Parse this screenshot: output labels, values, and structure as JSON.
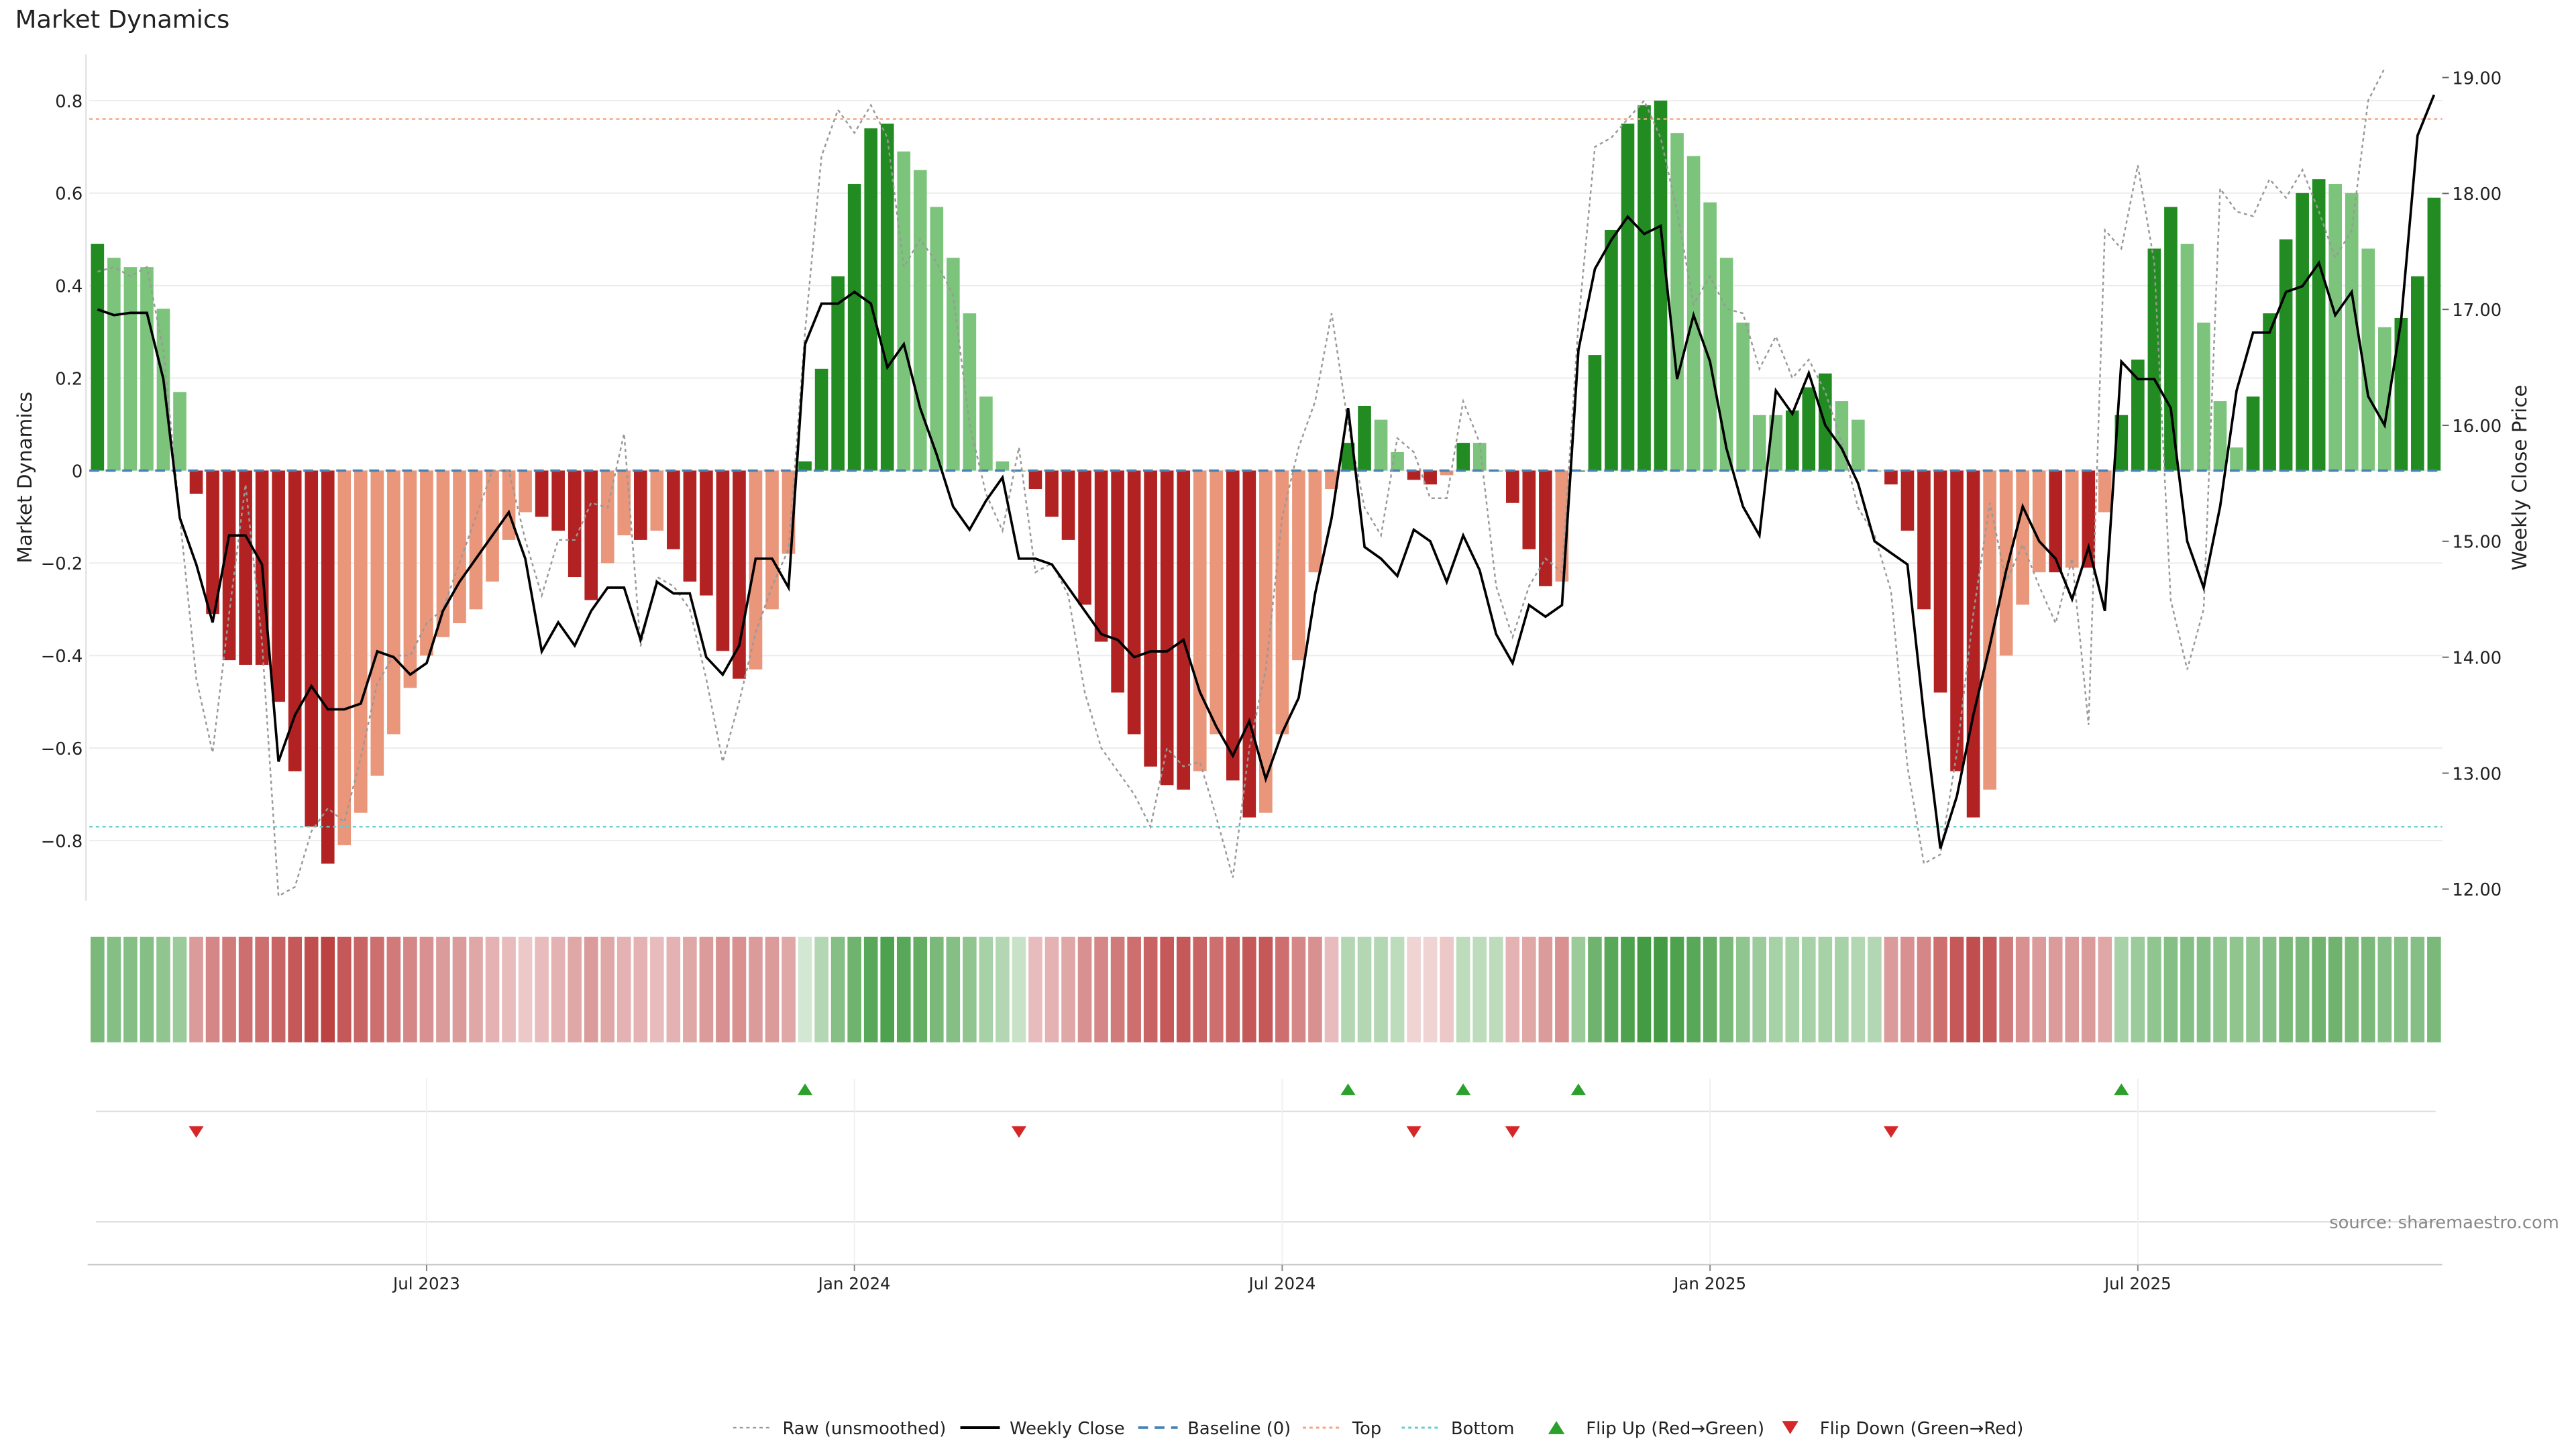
{
  "chart_data": {
    "type": "bar",
    "title": "Market Dynamics",
    "ylabel": "Market Dynamics",
    "ylabel_right": "Weekly Close Price",
    "ylim": [
      -0.93,
      0.9
    ],
    "ylim_right": [
      11.9,
      19.2
    ],
    "left_ticks": [
      {
        "v": 0.8,
        "label": "0.8"
      },
      {
        "v": 0.6,
        "label": "0.6"
      },
      {
        "v": 0.4,
        "label": "0.4"
      },
      {
        "v": 0.2,
        "label": "0.2"
      },
      {
        "v": 0,
        "label": "0"
      },
      {
        "v": -0.2,
        "label": "−0.2"
      },
      {
        "v": -0.4,
        "label": "−0.4"
      },
      {
        "v": -0.6,
        "label": "−0.6"
      },
      {
        "v": -0.8,
        "label": "−0.8"
      }
    ],
    "right_ticks": [
      {
        "v": 19,
        "label": "19.00"
      },
      {
        "v": 18,
        "label": "18.00"
      },
      {
        "v": 17,
        "label": "17.00"
      },
      {
        "v": 16,
        "label": "16.00"
      },
      {
        "v": 15,
        "label": "15.00"
      },
      {
        "v": 14,
        "label": "14.00"
      },
      {
        "v": 13,
        "label": "13.00"
      },
      {
        "v": 12,
        "label": "12.00"
      }
    ],
    "x_ticks": [
      {
        "i": 20,
        "label": "Jul 2023"
      },
      {
        "i": 46,
        "label": "Jan 2024"
      },
      {
        "i": 72,
        "label": "Jul 2024"
      },
      {
        "i": 98,
        "label": "Jan 2025"
      },
      {
        "i": 124,
        "label": "Jul 2025"
      }
    ],
    "top_level": 0.76,
    "bottom_level": -0.77,
    "grid": true,
    "legend_position": "bottom-center",
    "legend": [
      "Raw (unsmoothed)",
      "Weekly Close",
      "Baseline (0)",
      "Top",
      "Bottom",
      "Flip Up (Red→Green)",
      "Flip Down (Green→Red)"
    ],
    "annotation": "source: sharemaestro.com",
    "colors": {
      "strong_green": "#228B22",
      "light_green": "#7CC47C",
      "strong_red": "#B22222",
      "light_red": "#E9967A",
      "raw_line": "#999999",
      "close_line": "#000000",
      "baseline": "#4682B4",
      "top": "#F4A582",
      "bottom": "#66CCCC",
      "flip_up": "#2CA02C",
      "flip_down": "#D62728"
    },
    "series": [
      {
        "name": "Market Dynamics",
        "values": [
          0.49,
          0.46,
          0.44,
          0.44,
          0.35,
          0.17,
          -0.05,
          -0.31,
          -0.41,
          -0.42,
          -0.42,
          -0.5,
          -0.65,
          -0.77,
          -0.85,
          -0.81,
          -0.74,
          -0.66,
          -0.57,
          -0.47,
          -0.4,
          -0.36,
          -0.33,
          -0.3,
          -0.24,
          -0.15,
          -0.09,
          -0.1,
          -0.13,
          -0.23,
          -0.28,
          -0.2,
          -0.14,
          -0.15,
          -0.13,
          -0.17,
          -0.24,
          -0.27,
          -0.39,
          -0.45,
          -0.43,
          -0.3,
          -0.18,
          0.02,
          0.22,
          0.42,
          0.62,
          0.74,
          0.75,
          0.69,
          0.65,
          0.57,
          0.46,
          0.34,
          0.16,
          0.02,
          0,
          -0.04,
          -0.1,
          -0.15,
          -0.29,
          -0.37,
          -0.48,
          -0.57,
          -0.64,
          -0.68,
          -0.69,
          -0.65,
          -0.57,
          -0.67,
          -0.75,
          -0.74,
          -0.57,
          -0.41,
          -0.22,
          -0.04,
          0.06,
          0.14,
          0.11,
          0.04,
          -0.02,
          -0.03,
          -0.01,
          0.06,
          0.06,
          0,
          -0.07,
          -0.17,
          -0.25,
          -0.24,
          0,
          0.25,
          0.52,
          0.75,
          0.79,
          0.8,
          0.73,
          0.68,
          0.58,
          0.46,
          0.32,
          0.12,
          0.12,
          0.13,
          0.18,
          0.21,
          0.15,
          0.11,
          0,
          -0.03,
          -0.13,
          -0.3,
          -0.48,
          -0.65,
          -0.75,
          -0.69,
          -0.4,
          -0.29,
          -0.22,
          -0.22,
          -0.21,
          -0.21,
          -0.09,
          0.12,
          0.24,
          0.48,
          0.57,
          0.49,
          0.32,
          0.15,
          0.05,
          0.16,
          0.34,
          0.5,
          0.6,
          0.63,
          0.62,
          0.6,
          0.48,
          0.31,
          0.33,
          0.42,
          0.59
        ]
      },
      {
        "name": "Raw (unsmoothed)",
        "values": [
          0.43,
          0.44,
          0.42,
          0.44,
          0.26,
          -0.1,
          -0.45,
          -0.61,
          -0.31,
          -0.03,
          -0.37,
          -0.92,
          -0.9,
          -0.78,
          -0.73,
          -0.76,
          -0.62,
          -0.46,
          -0.4,
          -0.4,
          -0.33,
          -0.3,
          -0.2,
          -0.1,
          0,
          0,
          -0.15,
          -0.27,
          -0.15,
          -0.15,
          -0.07,
          -0.08,
          0.08,
          -0.38,
          -0.23,
          -0.25,
          -0.3,
          -0.45,
          -0.63,
          -0.5,
          -0.35,
          -0.25,
          -0.17,
          0.3,
          0.68,
          0.78,
          0.73,
          0.79,
          0.72,
          0.44,
          0.5,
          0.45,
          0.38,
          0.1,
          -0.05,
          -0.13,
          0.05,
          -0.22,
          -0.2,
          -0.27,
          -0.48,
          -0.6,
          -0.65,
          -0.7,
          -0.77,
          -0.6,
          -0.64,
          -0.63,
          -0.75,
          -0.88,
          -0.6,
          -0.43,
          -0.1,
          0.05,
          0.15,
          0.34,
          0.1,
          -0.08,
          -0.14,
          0.07,
          0.04,
          -0.06,
          -0.06,
          0.15,
          0.06,
          -0.25,
          -0.36,
          -0.25,
          -0.19,
          -0.22,
          0.32,
          0.7,
          0.72,
          0.76,
          0.8,
          0.72,
          0.56,
          0.36,
          0.42,
          0.35,
          0.34,
          0.22,
          0.29,
          0.2,
          0.24,
          0.17,
          0.06,
          -0.08,
          -0.14,
          -0.26,
          -0.64,
          -0.85,
          -0.83,
          -0.61,
          -0.31,
          -0.07,
          -0.24,
          -0.16,
          -0.25,
          -0.33,
          -0.19,
          -0.55,
          0.52,
          0.48,
          0.66,
          0.45,
          -0.28,
          -0.43,
          -0.3,
          0.61,
          0.56,
          0.55,
          0.63,
          0.59,
          0.65,
          0.56,
          0.46,
          0.52,
          0.8,
          0.87
        ]
      },
      {
        "name": "Weekly Close",
        "axis": "right",
        "values": [
          17,
          16.95,
          16.97,
          16.97,
          16.4,
          15.2,
          14.8,
          14.3,
          15.05,
          15.05,
          14.8,
          13.1,
          13.5,
          13.75,
          13.55,
          13.55,
          13.6,
          14.05,
          14,
          13.85,
          13.95,
          14.4,
          14.65,
          14.85,
          15.05,
          15.25,
          14.85,
          14.05,
          14.3,
          14.1,
          14.4,
          14.6,
          14.6,
          14.15,
          14.65,
          14.55,
          14.55,
          14,
          13.85,
          14.1,
          14.85,
          14.85,
          14.6,
          16.7,
          17.05,
          17.05,
          17.15,
          17.05,
          16.5,
          16.7,
          16.15,
          15.75,
          15.3,
          15.1,
          15.35,
          15.55,
          14.85,
          14.85,
          14.8,
          14.6,
          14.4,
          14.2,
          14.15,
          14,
          14.05,
          14.05,
          14.15,
          13.7,
          13.4,
          13.15,
          13.45,
          12.95,
          13.35,
          13.65,
          14.55,
          15.2,
          16.15,
          14.95,
          14.85,
          14.7,
          15.1,
          15,
          14.65,
          15.05,
          14.75,
          14.2,
          13.95,
          14.45,
          14.35,
          14.45,
          16.65,
          17.35,
          17.6,
          17.8,
          17.65,
          17.72,
          16.4,
          16.95,
          16.55,
          15.8,
          15.3,
          15.05,
          16.3,
          16.1,
          16.45,
          16,
          15.8,
          15.5,
          15,
          14.9,
          14.8,
          13.5,
          12.35,
          12.8,
          13.5,
          14.1,
          14.75,
          15.3,
          15,
          14.85,
          14.5,
          14.95,
          14.4,
          16.55,
          16.4,
          16.4,
          16.15,
          15,
          14.6,
          15.3,
          16.3,
          16.8,
          16.8,
          17.15,
          17.2,
          17.4,
          16.95,
          17.15,
          16.25,
          16,
          16.9,
          18.5,
          18.85
        ]
      }
    ],
    "strength_ribbon": [
      0.6,
      0.55,
      0.55,
      0.55,
      0.5,
      0.45,
      0.45,
      0.55,
      0.6,
      0.65,
      0.65,
      0.7,
      0.75,
      0.8,
      0.85,
      0.75,
      0.7,
      0.65,
      0.6,
      0.55,
      0.5,
      0.45,
      0.45,
      0.4,
      0.35,
      0.3,
      0.25,
      0.3,
      0.35,
      0.4,
      0.45,
      0.4,
      0.35,
      0.35,
      0.3,
      0.35,
      0.4,
      0.45,
      0.5,
      0.5,
      0.45,
      0.45,
      0.4,
      0.2,
      0.35,
      0.55,
      0.65,
      0.75,
      0.8,
      0.75,
      0.7,
      0.6,
      0.55,
      0.5,
      0.4,
      0.35,
      0.25,
      0.3,
      0.35,
      0.4,
      0.5,
      0.55,
      0.6,
      0.65,
      0.7,
      0.75,
      0.75,
      0.7,
      0.65,
      0.7,
      0.75,
      0.75,
      0.65,
      0.55,
      0.5,
      0.3,
      0.35,
      0.35,
      0.35,
      0.3,
      0.2,
      0.2,
      0.25,
      0.3,
      0.3,
      0.3,
      0.35,
      0.4,
      0.45,
      0.5,
      0.45,
      0.65,
      0.75,
      0.8,
      0.85,
      0.85,
      0.8,
      0.75,
      0.7,
      0.6,
      0.5,
      0.45,
      0.4,
      0.4,
      0.4,
      0.4,
      0.4,
      0.35,
      0.35,
      0.45,
      0.5,
      0.55,
      0.65,
      0.75,
      0.8,
      0.75,
      0.6,
      0.5,
      0.45,
      0.45,
      0.45,
      0.45,
      0.4,
      0.4,
      0.45,
      0.5,
      0.55,
      0.55,
      0.55,
      0.5,
      0.5,
      0.5,
      0.55,
      0.6,
      0.6,
      0.65,
      0.65,
      0.6,
      0.6,
      0.55,
      0.55,
      0.55,
      0.6,
      0.6
    ],
    "flips": [
      {
        "i": 6,
        "dir": "down"
      },
      {
        "i": 43,
        "dir": "up"
      },
      {
        "i": 56,
        "dir": "down"
      },
      {
        "i": 76,
        "dir": "up"
      },
      {
        "i": 80,
        "dir": "down"
      },
      {
        "i": 83,
        "dir": "up"
      },
      {
        "i": 86,
        "dir": "down"
      },
      {
        "i": 90,
        "dir": "up"
      },
      {
        "i": 109,
        "dir": "down"
      },
      {
        "i": 123,
        "dir": "up"
      }
    ]
  }
}
